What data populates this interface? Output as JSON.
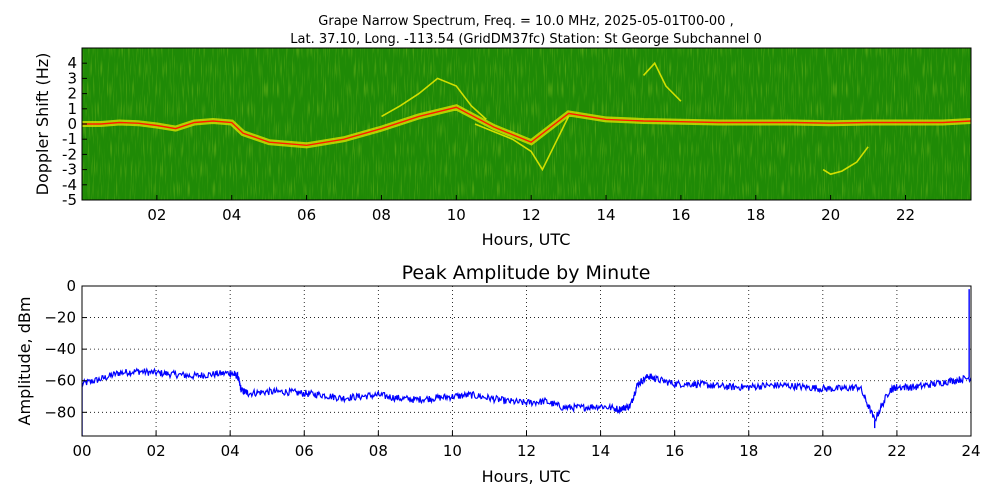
{
  "chart_data": [
    {
      "type": "heatmap",
      "title_line1": "Grape Narrow Spectrum, Freq. = 10.0 MHz, 2025-05-01T00-00 ,",
      "title_line2": "Lat.  37.10, Long. -113.54 (GridDM37fc) Station: St George Subchannel 0",
      "xlabel": "Hours, UTC",
      "ylabel": "Doppler Shift (Hz)",
      "xlim": [
        0,
        23.75
      ],
      "ylim": [
        -5,
        5
      ],
      "xticks": [
        2,
        4,
        6,
        8,
        10,
        12,
        14,
        16,
        18,
        20,
        22
      ],
      "xtick_labels": [
        "02",
        "04",
        "06",
        "08",
        "10",
        "12",
        "14",
        "16",
        "18",
        "20",
        "22"
      ],
      "yticks": [
        4,
        3,
        2,
        1,
        0,
        -1,
        -2,
        -3,
        -4,
        -5
      ],
      "ytick_labels": [
        "4",
        "3",
        "2",
        "1",
        "0",
        "-1",
        "-2",
        "-3",
        "-4",
        "-5"
      ],
      "colors": {
        "background": "#1f8a06",
        "mid": "#e4e800",
        "peak": "#ff1c00"
      },
      "carrier_trace": {
        "hours": [
          0,
          0.5,
          1,
          1.5,
          2,
          2.5,
          3,
          3.5,
          4,
          4.3,
          5,
          6,
          7,
          8,
          9,
          10,
          11,
          12,
          13,
          14,
          15,
          16,
          17,
          18,
          19,
          20,
          21,
          22,
          23,
          23.75
        ],
        "doppler_hz": [
          0,
          0,
          0.1,
          0.05,
          -0.1,
          -0.3,
          0.1,
          0.2,
          0.1,
          -0.6,
          -1.2,
          -1.4,
          -1.0,
          -0.3,
          0.5,
          1.1,
          -0.2,
          -1.2,
          0.7,
          0.3,
          0.2,
          0.15,
          0.1,
          0.1,
          0.1,
          0.05,
          0.1,
          0.1,
          0.1,
          0.2
        ]
      },
      "doppler_traces": [
        {
          "hours": [
            8.0,
            8.5,
            9.0,
            9.5,
            10.0,
            10.4,
            10.8
          ],
          "doppler_hz": [
            0.5,
            1.2,
            2.0,
            3.0,
            2.5,
            1.2,
            0.3
          ]
        },
        {
          "hours": [
            10.5,
            11.0,
            11.5,
            12.0,
            12.3,
            12.6,
            13.0
          ],
          "doppler_hz": [
            0.0,
            -0.5,
            -1.0,
            -1.8,
            -3.0,
            -1.5,
            0.5
          ]
        },
        {
          "hours": [
            15.0,
            15.3,
            15.6,
            16.0
          ],
          "doppler_hz": [
            3.2,
            4.0,
            2.5,
            1.5
          ]
        },
        {
          "hours": [
            19.8,
            20.0,
            20.3,
            20.7,
            21.0
          ],
          "doppler_hz": [
            -3.0,
            -3.3,
            -3.1,
            -2.5,
            -1.5
          ]
        }
      ]
    },
    {
      "type": "line",
      "title": "Peak Amplitude by Minute",
      "xlabel": "Hours, UTC",
      "ylabel": "Amplitude, dBm",
      "xlim": [
        0,
        24
      ],
      "ylim": [
        -95,
        0
      ],
      "xticks": [
        0,
        2,
        4,
        6,
        8,
        10,
        12,
        14,
        16,
        18,
        20,
        22,
        24
      ],
      "xtick_labels": [
        "00",
        "02",
        "04",
        "06",
        "08",
        "10",
        "12",
        "14",
        "16",
        "18",
        "20",
        "22",
        "24"
      ],
      "yticks": [
        0,
        -20,
        -40,
        -60,
        -80
      ],
      "ytick_labels": [
        "0",
        "−20",
        "−40",
        "−60",
        "−80"
      ],
      "grid": true,
      "line_color": "#0000ff",
      "x": [
        0,
        0.5,
        1.0,
        1.5,
        2.0,
        2.5,
        3.0,
        3.5,
        4.0,
        4.2,
        4.3,
        4.5,
        5.0,
        5.5,
        6.0,
        6.5,
        7.0,
        7.5,
        8.0,
        8.5,
        9.0,
        9.5,
        10.0,
        10.5,
        11.0,
        11.5,
        12.0,
        12.5,
        13.0,
        13.5,
        14.0,
        14.5,
        14.8,
        15.0,
        15.3,
        15.5,
        16.0,
        16.5,
        17.0,
        17.5,
        18.0,
        18.5,
        19.0,
        19.5,
        20.0,
        20.5,
        21.0,
        21.4,
        21.8,
        22.0,
        22.5,
        23.0,
        23.5,
        24.0
      ],
      "y": [
        -62,
        -59,
        -55,
        -54,
        -55,
        -56,
        -57,
        -56,
        -55,
        -57,
        -66,
        -68,
        -67,
        -67,
        -68,
        -69,
        -71,
        -70,
        -69,
        -71,
        -72,
        -71,
        -70,
        -69,
        -71,
        -73,
        -74,
        -73,
        -77,
        -77,
        -76,
        -78,
        -76,
        -62,
        -57,
        -59,
        -62,
        -62,
        -63,
        -64,
        -64,
        -63,
        -63,
        -64,
        -65,
        -65,
        -64,
        -85,
        -66,
        -64,
        -64,
        -62,
        -60,
        -58
      ],
      "spikes": [
        {
          "x": 0.0,
          "y": -95
        },
        {
          "x": 21.4,
          "y": -90
        },
        {
          "x": 23.95,
          "y": -2
        }
      ]
    }
  ]
}
